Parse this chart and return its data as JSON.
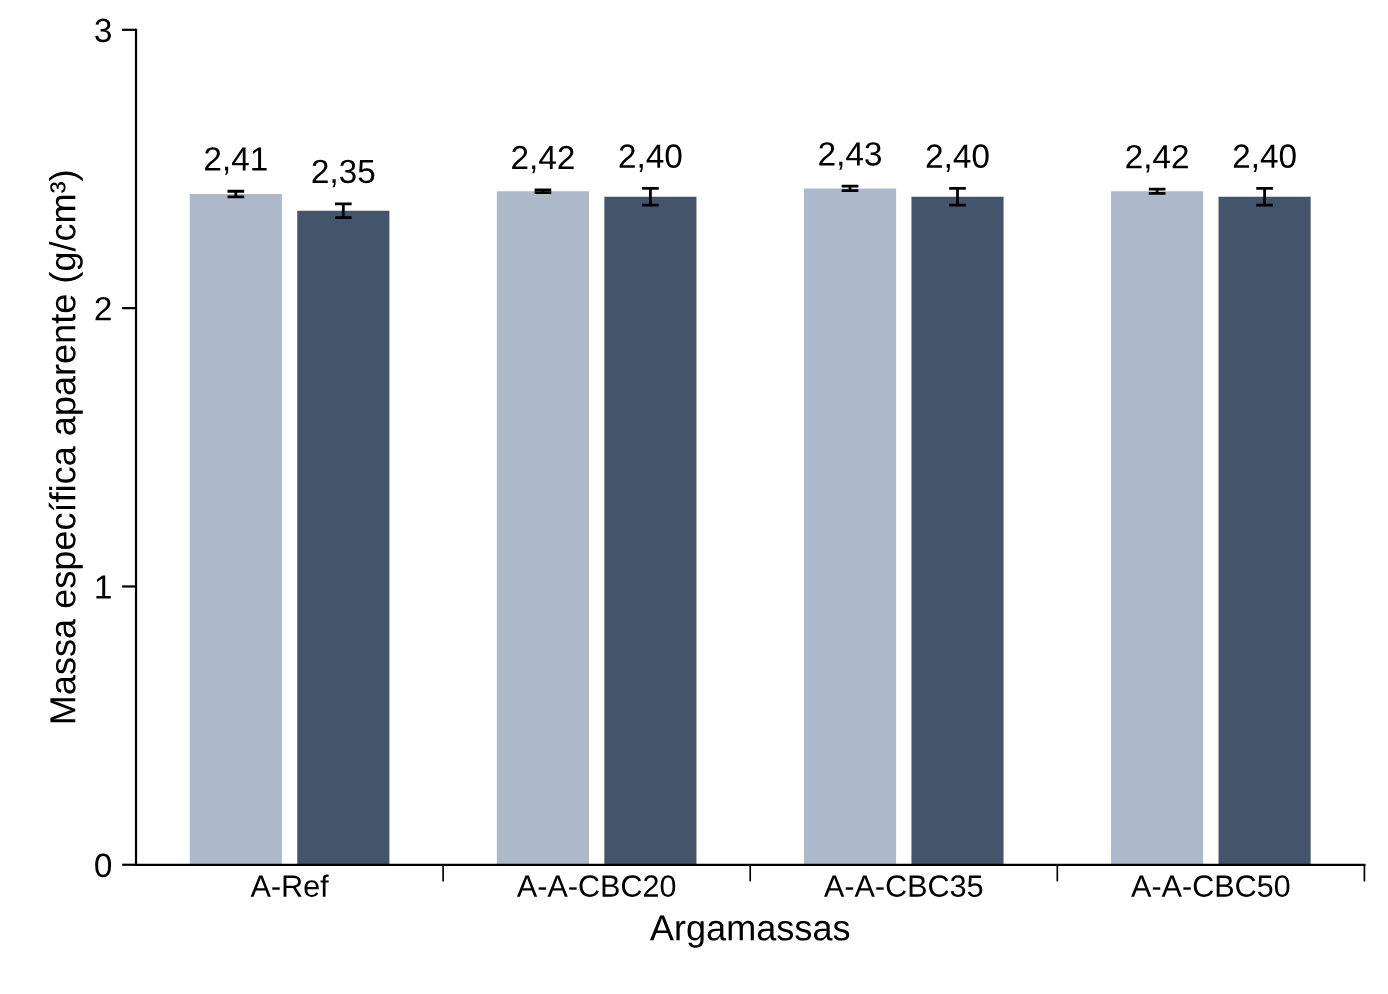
{
  "chart_data": {
    "type": "bar",
    "xlabel": "Argamassas",
    "ylabel": "Massa específica aparente (g/cm³)",
    "categories": [
      "A-Ref",
      "A-A-CBC20",
      "A-A-CBC35",
      "A-A-CBC50"
    ],
    "series": [
      {
        "color": "#adb8cb",
        "values": [
          2.41,
          2.42,
          2.43,
          2.42
        ],
        "errors": [
          0.01,
          0.005,
          0.008,
          0.008
        ],
        "value_labels": [
          "2,41",
          "2,42",
          "2,43",
          "2,42"
        ]
      },
      {
        "color": "#44546b",
        "values": [
          2.35,
          2.4,
          2.4,
          2.4
        ],
        "errors": [
          0.025,
          0.03,
          0.03,
          0.03
        ],
        "value_labels": [
          "2,35",
          "2,40",
          "2,40",
          "2,40"
        ]
      }
    ],
    "ylim": [
      0,
      3
    ],
    "yticks": [
      0,
      1,
      2,
      3
    ],
    "grid": false,
    "legend": false
  }
}
